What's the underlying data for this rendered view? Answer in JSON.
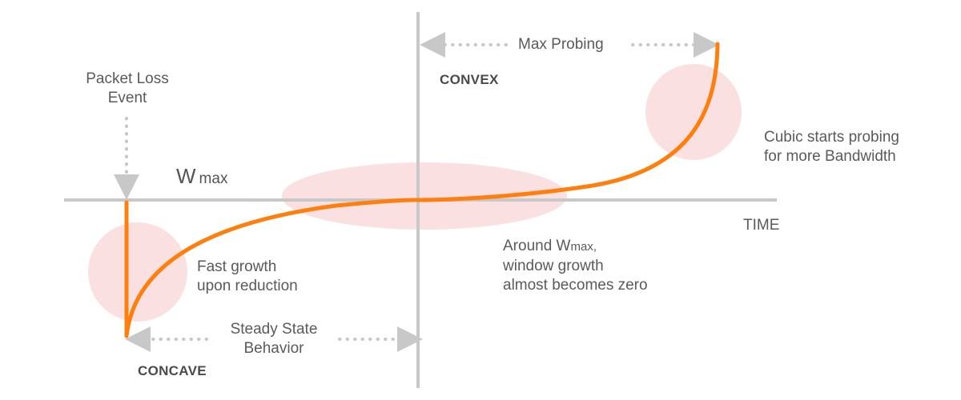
{
  "labels": {
    "max_probing": "Max  Probing",
    "convex": "CONVEX",
    "packet_loss_line1": "Packet Loss",
    "packet_loss_line2": "Event",
    "wmax_w": "W",
    "wmax_sub": "max",
    "time": "TIME",
    "cubic_line1": "Cubic starts probing",
    "cubic_line2": "for more Bandwidth",
    "fast_growth_line1": "Fast growth",
    "fast_growth_line2": "upon reduction",
    "around_prefix": "Around W",
    "around_sub": "max,",
    "around_line2": "window growth",
    "around_line3": "almost becomes zero",
    "steady_line1": "Steady State",
    "steady_line2": "Behavior",
    "concave": "CONCAVE"
  },
  "colors": {
    "curve": "#ff7f0e",
    "axis": "#c8c8c8",
    "highlight": "#fadadd",
    "text": "#555555"
  }
}
